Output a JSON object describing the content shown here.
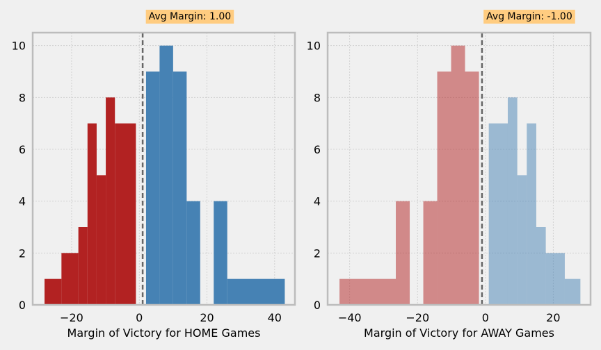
{
  "chart_data": [
    {
      "type": "histogram",
      "xlabel": "Margin of Victory for HOME Games",
      "ylabel": "",
      "annotation": "Avg Margin: 1.00",
      "mean_line": 1.0,
      "xlim": [
        -31.5,
        46
      ],
      "ylim": [
        0,
        10.5
      ],
      "xticks": [
        -20,
        0,
        20,
        40
      ],
      "xtick_labels": [
        "−20",
        "0",
        "20",
        "40"
      ],
      "yticks": [
        0,
        2,
        4,
        6,
        8,
        10
      ],
      "ytick_labels": [
        "0",
        "2",
        "4",
        "6",
        "8",
        "10"
      ],
      "grid": true,
      "series": [
        {
          "color": "#b22222",
          "alpha": 1.0,
          "bins": [
            {
              "x0": -28,
              "x1": -23,
              "count": 1
            },
            {
              "x0": -23,
              "x1": -18,
              "count": 2
            },
            {
              "x0": -18,
              "x1": -15.3,
              "count": 3
            },
            {
              "x0": -15.3,
              "x1": -12.6,
              "count": 7
            },
            {
              "x0": -12.6,
              "x1": -9.9,
              "count": 5
            },
            {
              "x0": -9.9,
              "x1": -7.2,
              "count": 8
            },
            {
              "x0": -7.2,
              "x1": -1,
              "count": 7
            }
          ]
        },
        {
          "color": "#4682b4",
          "alpha": 1.0,
          "bins": [
            {
              "x0": 2,
              "x1": 6,
              "count": 9
            },
            {
              "x0": 6,
              "x1": 10,
              "count": 10
            },
            {
              "x0": 10,
              "x1": 14,
              "count": 9
            },
            {
              "x0": 14,
              "x1": 18,
              "count": 4
            },
            {
              "x0": 22,
              "x1": 26,
              "count": 4
            },
            {
              "x0": 26,
              "x1": 43,
              "count": 1
            }
          ]
        }
      ]
    },
    {
      "type": "histogram",
      "xlabel": "Margin of Victory for AWAY Games",
      "ylabel": "",
      "annotation": "Avg Margin: -1.00",
      "mean_line": -1.0,
      "xlim": [
        -46.5,
        31
      ],
      "ylim": [
        0,
        10.5
      ],
      "xticks": [
        -40,
        -20,
        0,
        20
      ],
      "xtick_labels": [
        "−40",
        "−20",
        "0",
        "20"
      ],
      "yticks": [
        0,
        2,
        4,
        6,
        8,
        10
      ],
      "ytick_labels": [
        "0",
        "2",
        "4",
        "6",
        "8",
        "10"
      ],
      "grid": true,
      "series": [
        {
          "color": "#b22222",
          "alpha": 0.5,
          "bins": [
            {
              "x0": -43,
              "x1": -26.4,
              "count": 1
            },
            {
              "x0": -26.4,
              "x1": -22.3,
              "count": 4
            },
            {
              "x0": -18.3,
              "x1": -14.2,
              "count": 4
            },
            {
              "x0": -14.2,
              "x1": -10.1,
              "count": 9
            },
            {
              "x0": -10.1,
              "x1": -6,
              "count": 10
            },
            {
              "x0": -6,
              "x1": -1.9,
              "count": 9
            }
          ]
        },
        {
          "color": "#4682b4",
          "alpha": 0.5,
          "bins": [
            {
              "x0": 1,
              "x1": 6.6,
              "count": 7
            },
            {
              "x0": 6.6,
              "x1": 9.4,
              "count": 8
            },
            {
              "x0": 9.4,
              "x1": 12.2,
              "count": 5
            },
            {
              "x0": 12.2,
              "x1": 15,
              "count": 7
            },
            {
              "x0": 15,
              "x1": 17.8,
              "count": 3
            },
            {
              "x0": 17.8,
              "x1": 23.4,
              "count": 2
            },
            {
              "x0": 23.4,
              "x1": 28,
              "count": 1
            }
          ]
        }
      ]
    }
  ],
  "colors": {
    "background": "#f0f0f0",
    "axes_face": "#f0f0f0",
    "spine": "#bcbcbc",
    "grid": "#cbcbcb",
    "mean_line": "#666666",
    "annotation_bg": "#ffcc80"
  }
}
